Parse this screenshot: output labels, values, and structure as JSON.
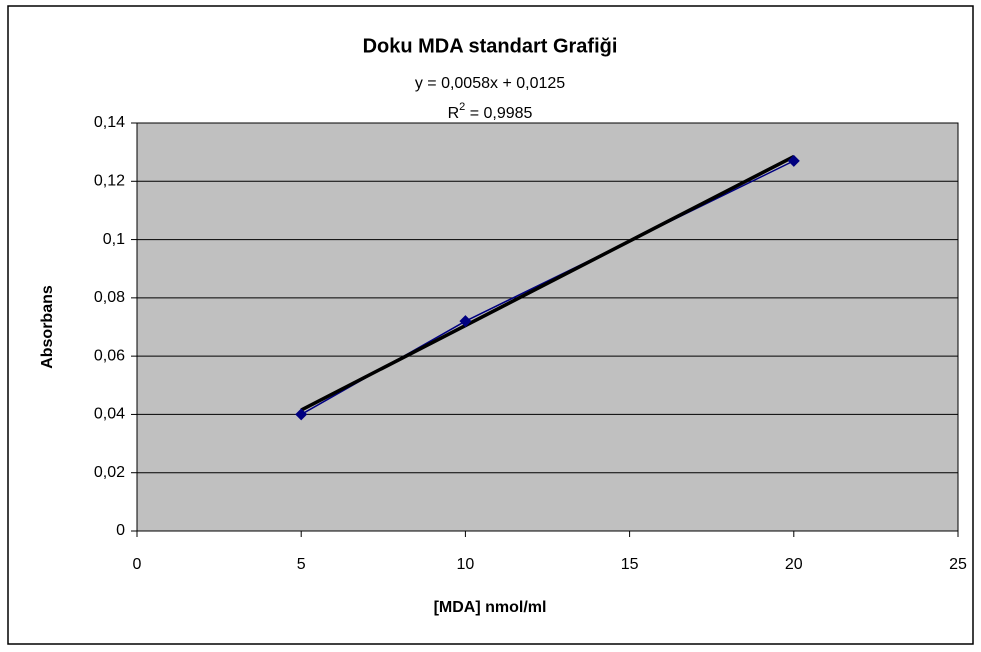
{
  "chart_data": {
    "type": "line",
    "title": "Doku MDA standart Grafiği",
    "equation": "y = 0,0058x + 0,0125",
    "r_squared": {
      "base": "R",
      "sup": "2",
      "rest": " = 0,9985"
    },
    "xlabel": "[MDA] nmol/ml",
    "ylabel": "Absorbans",
    "x": [
      5,
      10,
      20
    ],
    "series": [
      {
        "color": "#000080",
        "values": [
          0.04,
          0.072,
          0.127
        ]
      }
    ],
    "trendline": {
      "color": "#000000",
      "x": [
        5,
        20
      ],
      "values": [
        0.0415,
        0.1285
      ]
    },
    "xlim": [
      0,
      25
    ],
    "xticks": [
      0,
      5,
      10,
      15,
      20,
      25
    ],
    "ylim": [
      0,
      0.14
    ],
    "yticks": [
      0,
      {
        "value": 0.02,
        "label": "0,02"
      },
      {
        "value": 0.04,
        "label": "0,04"
      },
      {
        "value": 0.06,
        "label": "0,06"
      },
      {
        "value": 0.08,
        "label": "0,08"
      },
      {
        "value": 0.1,
        "label": "0,1"
      },
      {
        "value": 0.12,
        "label": "0,12"
      },
      {
        "value": 0.14,
        "label": "0,14"
      }
    ],
    "grid": true,
    "plot_background": "#c0c0c0"
  }
}
